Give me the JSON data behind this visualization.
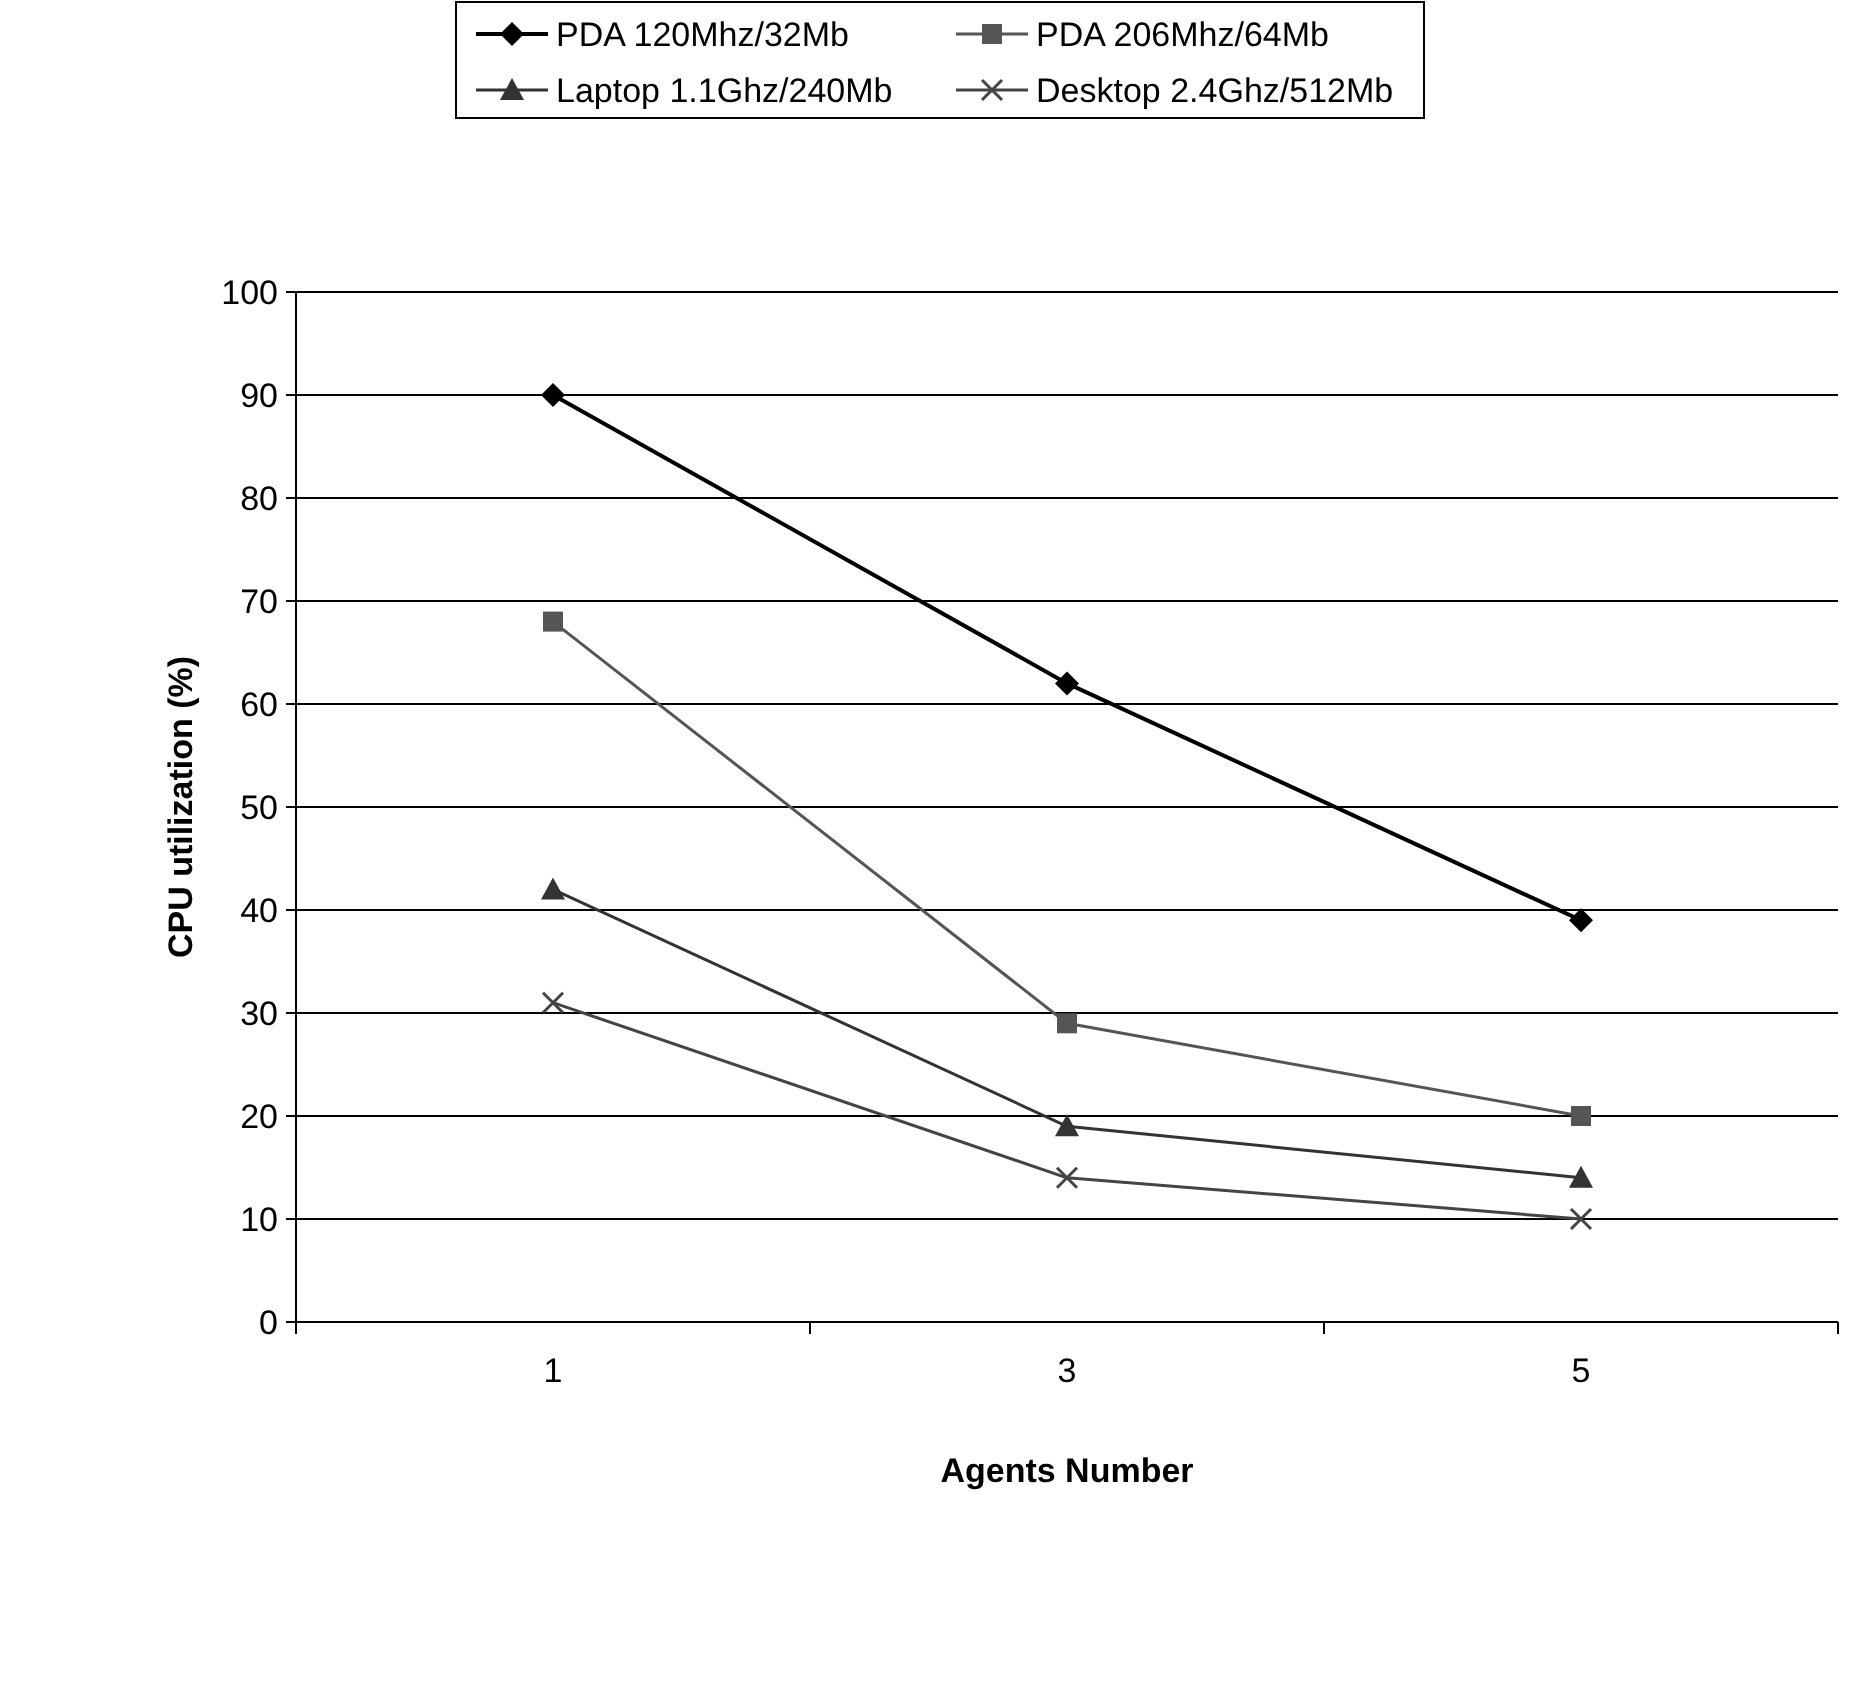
{
  "chart_data": {
    "type": "line",
    "xlabel": "Agents Number",
    "ylabel": "CPU utilization (%)",
    "categories": [
      "1",
      "3",
      "5"
    ],
    "ylim": [
      0,
      100
    ],
    "yticks": [
      0,
      10,
      20,
      30,
      40,
      50,
      60,
      70,
      80,
      90,
      100
    ],
    "grid": "y",
    "legend": "top",
    "series": [
      {
        "name": "PDA 120Mhz/32Mb",
        "color": "#000000",
        "marker": "diamond",
        "values": [
          90,
          62,
          39
        ]
      },
      {
        "name": "PDA 206Mhz/64Mb",
        "color": "#555555",
        "marker": "square",
        "values": [
          68,
          29,
          20
        ]
      },
      {
        "name": "Laptop 1.1Ghz/240Mb",
        "color": "#333333",
        "marker": "triangle",
        "values": [
          42,
          19,
          14
        ]
      },
      {
        "name": "Desktop 2.4Ghz/512Mb",
        "color": "#444444",
        "marker": "cross",
        "values": [
          31,
          14,
          10
        ]
      }
    ]
  }
}
